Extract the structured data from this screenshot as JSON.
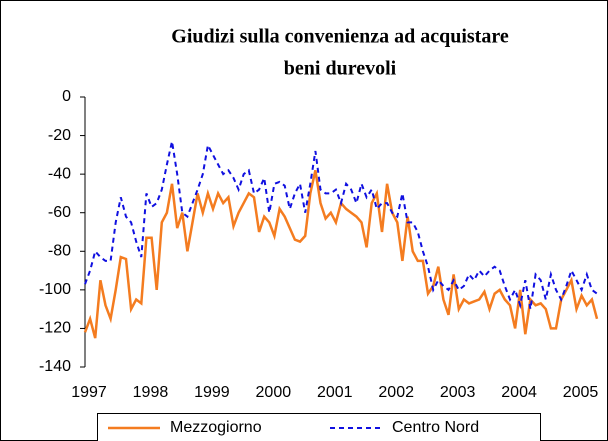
{
  "chart_data": {
    "type": "line",
    "title": [
      "Giudizi sulla convenienza ad acquistare",
      "beni durevoli"
    ],
    "categories": [
      "1997",
      null,
      null,
      null,
      null,
      null,
      null,
      null,
      null,
      null,
      null,
      null,
      "1998",
      null,
      null,
      null,
      null,
      null,
      null,
      null,
      null,
      null,
      null,
      null,
      "1999",
      null,
      null,
      null,
      null,
      null,
      null,
      null,
      null,
      null,
      null,
      null,
      "2000",
      null,
      null,
      null,
      null,
      null,
      null,
      null,
      null,
      null,
      null,
      null,
      "2001",
      null,
      null,
      null,
      null,
      null,
      null,
      null,
      null,
      null,
      null,
      null,
      "2002",
      null,
      null,
      null,
      null,
      null,
      null,
      null,
      null,
      null,
      null,
      null,
      "2003",
      null,
      null,
      null,
      null,
      null,
      null,
      null,
      null,
      null,
      null,
      null,
      "2004",
      null,
      null,
      null,
      null,
      null,
      null,
      null,
      null,
      null,
      null,
      null,
      "2005",
      null,
      null,
      null,
      null
    ],
    "series": [
      {
        "name": "Mezzogiorno",
        "color": "#f47c20",
        "dash": false,
        "values": [
          -122,
          -115,
          -125,
          -95,
          -108,
          -115,
          -100,
          -83,
          -84,
          -110,
          -105,
          -107,
          -73,
          -73,
          -100,
          -65,
          -60,
          -45,
          -68,
          -60,
          -80,
          -65,
          -50,
          -60,
          -50,
          -58,
          -50,
          -55,
          -52,
          -67,
          -60,
          -55,
          -50,
          -52,
          -70,
          -62,
          -65,
          -72,
          -58,
          -62,
          -68,
          -74,
          -75,
          -72,
          -50,
          -38,
          -55,
          -63,
          -60,
          -65,
          -55,
          -58,
          -60,
          -62,
          -65,
          -78,
          -55,
          -50,
          -70,
          -45,
          -60,
          -65,
          -85,
          -62,
          -80,
          -85,
          -85,
          -102,
          -98,
          -88,
          -105,
          -113,
          -92,
          -110,
          -105,
          -107,
          -106,
          -105,
          -101,
          -110,
          -102,
          -100,
          -105,
          -108,
          -120,
          -100,
          -123,
          -105,
          -108,
          -107,
          -110,
          -120,
          -120,
          -105,
          -100,
          -95,
          -110,
          -103,
          -108,
          -105,
          -115
        ]
      },
      {
        "name": "Centro Nord",
        "color": "#1010e0",
        "dash": true,
        "values": [
          -97,
          -90,
          -80,
          -83,
          -85,
          -85,
          -65,
          -52,
          -62,
          -65,
          -75,
          -83,
          -50,
          -57,
          -55,
          -48,
          -35,
          -23,
          -40,
          -60,
          -62,
          -55,
          -48,
          -40,
          -25,
          -30,
          -35,
          -40,
          -38,
          -42,
          -48,
          -40,
          -38,
          -50,
          -48,
          -42,
          -60,
          -45,
          -44,
          -46,
          -58,
          -50,
          -45,
          -60,
          -45,
          -28,
          -48,
          -50,
          -50,
          -48,
          -55,
          -45,
          -48,
          -55,
          -45,
          -52,
          -48,
          -58,
          -55,
          -55,
          -60,
          -62,
          -50,
          -65,
          -65,
          -70,
          -80,
          -88,
          -100,
          -95,
          -98,
          -100,
          -95,
          -100,
          -98,
          -92,
          -95,
          -90,
          -93,
          -90,
          -88,
          -90,
          -98,
          -105,
          -100,
          -108,
          -95,
          -110,
          -92,
          -95,
          -105,
          -92,
          -100,
          -105,
          -98,
          -90,
          -95,
          -100,
          -92,
          -100,
          -102
        ]
      }
    ],
    "ylim": [
      -140,
      0
    ],
    "yticks": [
      -140,
      -120,
      -100,
      -80,
      -60,
      -40,
      -20,
      0
    ],
    "grid": false
  }
}
